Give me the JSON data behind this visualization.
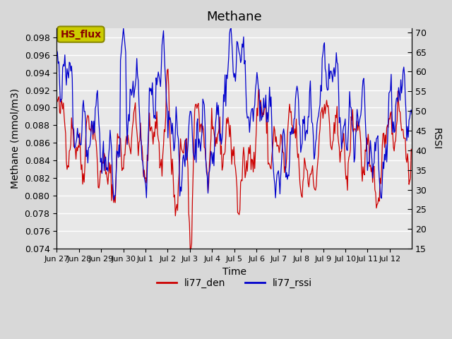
{
  "title": "Methane",
  "xlabel": "Time",
  "ylabel_left": "Methane (mmol/m3)",
  "ylabel_right": "RSSI",
  "ylim_left": [
    0.074,
    0.099
  ],
  "ylim_right": [
    15,
    71
  ],
  "yticks_left": [
    0.074,
    0.076,
    0.078,
    0.08,
    0.082,
    0.084,
    0.086,
    0.088,
    0.09,
    0.092,
    0.094,
    0.096,
    0.098
  ],
  "yticks_right": [
    15,
    20,
    25,
    30,
    35,
    40,
    45,
    50,
    55,
    60,
    65,
    70
  ],
  "xtick_labels": [
    "Jun 27",
    "Jun 28",
    "Jun 29",
    "Jun 30",
    "Jul 1",
    "Jul 2",
    "Jul 3",
    "Jul 4",
    "Jul 5",
    "Jul 6",
    "Jul 7",
    "Jul 8",
    "Jul 9",
    "Jul 10",
    "Jul 11",
    "Jul 12"
  ],
  "color_red": "#cc0000",
  "color_blue": "#0000cc",
  "legend_labels": [
    "li77_den",
    "li77_rssi"
  ],
  "annotation_text": "HS_flux",
  "annotation_bg": "#cccc00",
  "annotation_border": "#888800",
  "plot_bg": "#e8e8e8",
  "title_fontsize": 13,
  "label_fontsize": 10,
  "tick_fontsize": 9
}
